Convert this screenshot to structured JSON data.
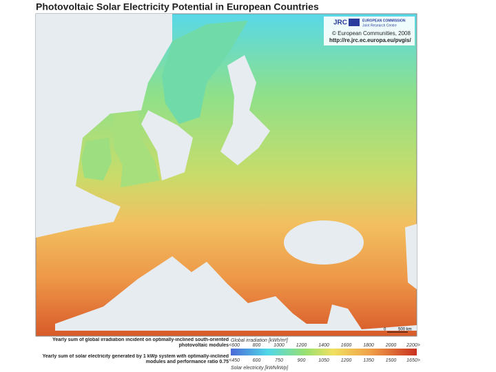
{
  "title": "Photovoltaic Solar Electricity Potential in European Countries",
  "credits": {
    "commission": "EUROPEAN COMMISSION",
    "centre": "Joint Research Centre",
    "copyright": "© European Communities, 2008",
    "url": "http://re.jrc.ec.europa.eu/pvgis/"
  },
  "scale": {
    "start": "0",
    "end": "500 km"
  },
  "legend": {
    "irradiation": {
      "description": "Yearly sum of global irradiation incident on optimally-inclined south-oriented photovoltaic modules",
      "label": "Global irradiation [kWh/m²]",
      "ticks": [
        "<600",
        "800",
        "1000",
        "1200",
        "1400",
        "1600",
        "1800",
        "2000",
        "2200>"
      ]
    },
    "electricity": {
      "description": "Yearly sum of solar electricity generated by 1 kWp system with optimally-inclined modules and performance ratio 0.75",
      "label": "Solar electricity [kWh/kWp]",
      "ticks": [
        "<450",
        "600",
        "750",
        "900",
        "1050",
        "1200",
        "1350",
        "1500",
        "1650>"
      ]
    }
  }
}
